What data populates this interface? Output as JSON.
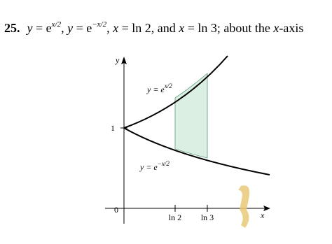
{
  "problem": {
    "number": "25.",
    "segments": [
      "y",
      " = e",
      "x/2",
      ", ",
      "y",
      " = e",
      "−x/2",
      ", ",
      "x",
      " = ln 2, and ",
      "x",
      " = ln 3; about the ",
      "x",
      "-axis"
    ]
  },
  "figure": {
    "y_axis_label": "y",
    "x_axis_label": "x",
    "origin_label": "0",
    "y_tick_label": "1",
    "x_tick_labels": [
      "ln 2",
      "ln 3"
    ],
    "upper_curve_label": {
      "lhs": "y = e",
      "exponent": "x/2"
    },
    "lower_curve_label": {
      "lhs": "y = e",
      "exponent": "−x/2"
    }
  }
}
